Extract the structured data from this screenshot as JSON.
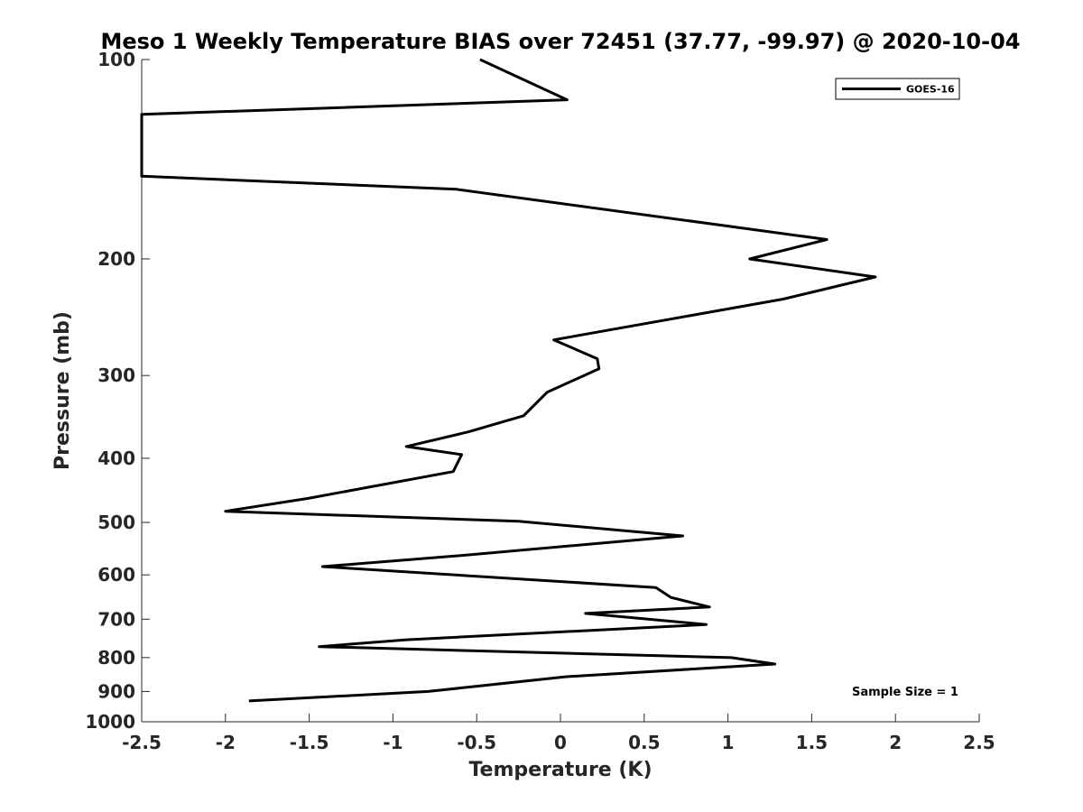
{
  "chart_data": {
    "type": "line",
    "title": "Meso 1 Weekly Temperature BIAS over 72451 (37.77, -99.97) @ 2020-10-04",
    "xlabel": "Temperature (K)",
    "ylabel": "Pressure (mb)",
    "xlim": [
      -2.5,
      2.5
    ],
    "ylim": [
      100,
      1000
    ],
    "y_scale": "log",
    "y_reversed": true,
    "x_ticks": [
      -2.5,
      -2,
      -1.5,
      -1,
      -0.5,
      0,
      0.5,
      1,
      1.5,
      2,
      2.5
    ],
    "x_tick_labels": [
      "-2.5",
      "-2",
      "-1.5",
      "-1",
      "-0.5",
      "0",
      "0.5",
      "1",
      "1.5",
      "2",
      "2.5"
    ],
    "y_ticks": [
      100,
      200,
      300,
      400,
      500,
      600,
      700,
      800,
      900,
      1000
    ],
    "y_tick_labels": [
      "100",
      "200",
      "300",
      "400",
      "500",
      "600",
      "700",
      "800",
      "900",
      "1000"
    ],
    "grid": false,
    "legend_position": "top-right",
    "annotation": "Sample Size = 1",
    "series": [
      {
        "name": "GOES-16",
        "color": "#000000",
        "x": [
          -0.48,
          0.04,
          -2.5,
          -2.5,
          -0.62,
          1.59,
          1.13,
          1.88,
          1.33,
          -0.04,
          0.22,
          0.23,
          -0.08,
          -0.22,
          -0.55,
          -0.92,
          -0.59,
          -0.64,
          -1.51,
          -2.0,
          -0.25,
          0.73,
          -0.63,
          -1.42,
          0.57,
          0.66,
          0.89,
          0.15,
          0.87,
          -0.92,
          -1.44,
          1.02,
          1.28,
          0.03,
          -0.79,
          -1.86
        ],
        "y": [
          100,
          115,
          121,
          150,
          157,
          187,
          200,
          213,
          230,
          265,
          283,
          293,
          318,
          345,
          365,
          384,
          395,
          419,
          460,
          481,
          498,
          524,
          562,
          583,
          627,
          649,
          671,
          686,
          713,
          752,
          770,
          800,
          818,
          855,
          900,
          930
        ]
      }
    ]
  }
}
